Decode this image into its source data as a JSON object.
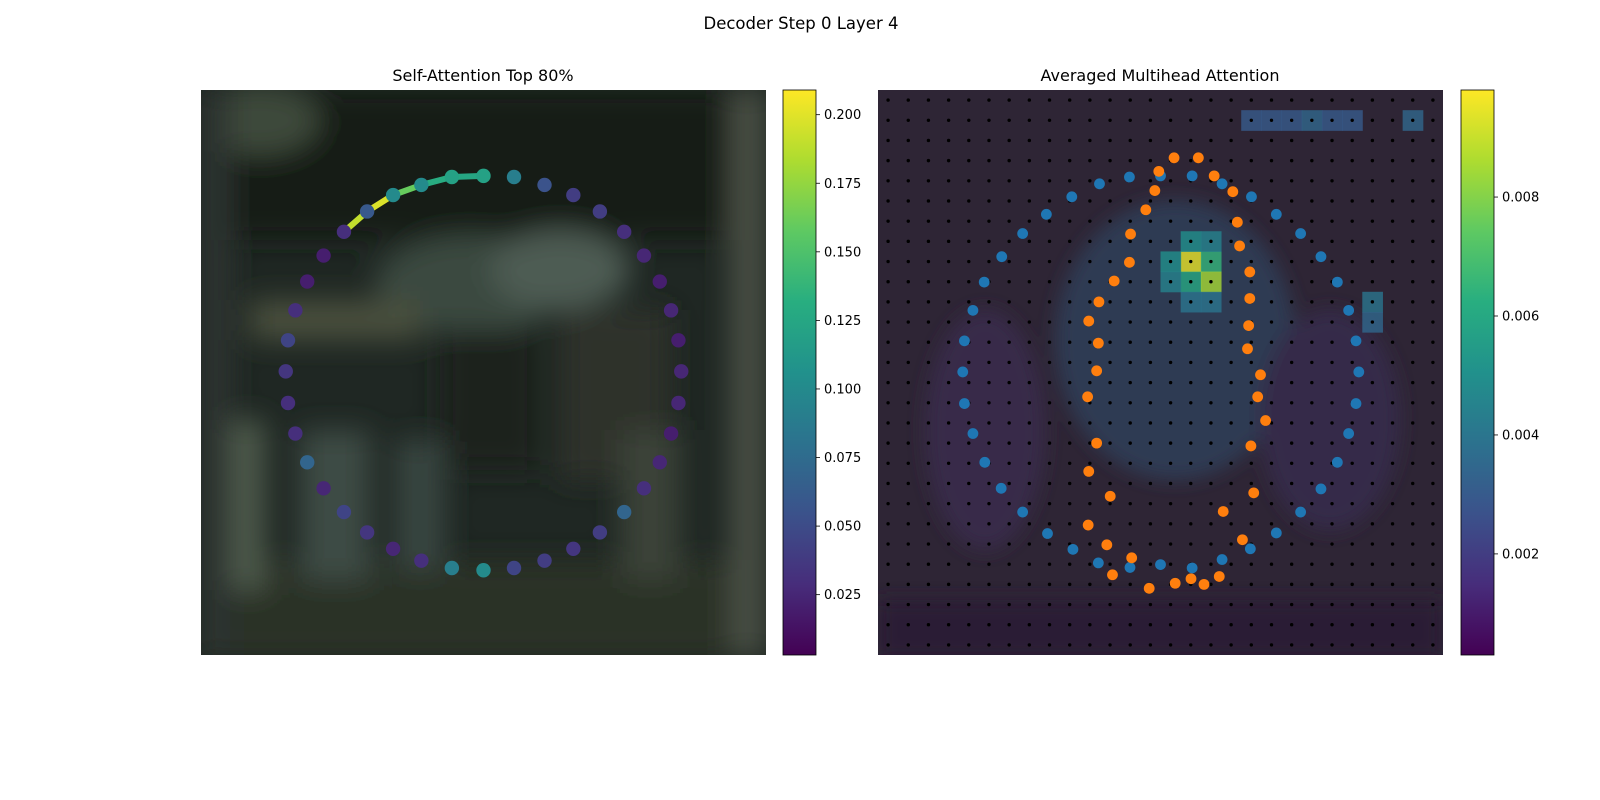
{
  "figure": {
    "suptitle": "Decoder Step 0 Layer 4"
  },
  "chart_data": [
    {
      "type": "scatter",
      "title": "Self-Attention Top 80%",
      "xlabel": "",
      "ylabel": "",
      "background": "blurred dark photograph",
      "grid": false,
      "colormap": "viridis",
      "colorbar": {
        "range": [
          0.003,
          0.209
        ],
        "ticks": [
          "0.025",
          "0.050",
          "0.075",
          "0.100",
          "0.125",
          "0.150",
          "0.175",
          "0.200"
        ]
      },
      "connections": [
        {
          "from": 0,
          "to": 1,
          "weight": 0.125
        },
        {
          "from": 1,
          "to": 2,
          "weight": 0.13
        },
        {
          "from": 2,
          "to": 3,
          "weight": 0.16
        },
        {
          "from": 3,
          "to": 4,
          "weight": 0.198
        },
        {
          "from": 4,
          "to": 5,
          "weight": 0.19
        }
      ],
      "points": [
        {
          "x": 0.5,
          "y": 0.848,
          "value": 0.12
        },
        {
          "x": 0.444,
          "y": 0.846,
          "value": 0.12
        },
        {
          "x": 0.39,
          "y": 0.832,
          "value": 0.1
        },
        {
          "x": 0.34,
          "y": 0.814,
          "value": 0.1
        },
        {
          "x": 0.294,
          "y": 0.785,
          "value": 0.06
        },
        {
          "x": 0.253,
          "y": 0.749,
          "value": 0.03
        },
        {
          "x": 0.217,
          "y": 0.707,
          "value": 0.02
        },
        {
          "x": 0.188,
          "y": 0.661,
          "value": 0.02
        },
        {
          "x": 0.167,
          "y": 0.61,
          "value": 0.03
        },
        {
          "x": 0.154,
          "y": 0.557,
          "value": 0.045
        },
        {
          "x": 0.15,
          "y": 0.502,
          "value": 0.035
        },
        {
          "x": 0.154,
          "y": 0.446,
          "value": 0.03
        },
        {
          "x": 0.167,
          "y": 0.392,
          "value": 0.03
        },
        {
          "x": 0.188,
          "y": 0.341,
          "value": 0.07
        },
        {
          "x": 0.217,
          "y": 0.295,
          "value": 0.025
        },
        {
          "x": 0.253,
          "y": 0.253,
          "value": 0.045
        },
        {
          "x": 0.294,
          "y": 0.217,
          "value": 0.035
        },
        {
          "x": 0.34,
          "y": 0.188,
          "value": 0.025
        },
        {
          "x": 0.39,
          "y": 0.167,
          "value": 0.03
        },
        {
          "x": 0.444,
          "y": 0.154,
          "value": 0.09
        },
        {
          "x": 0.5,
          "y": 0.15,
          "value": 0.1
        },
        {
          "x": 0.554,
          "y": 0.154,
          "value": 0.045
        },
        {
          "x": 0.608,
          "y": 0.167,
          "value": 0.04
        },
        {
          "x": 0.659,
          "y": 0.188,
          "value": 0.035
        },
        {
          "x": 0.706,
          "y": 0.217,
          "value": 0.04
        },
        {
          "x": 0.749,
          "y": 0.253,
          "value": 0.07
        },
        {
          "x": 0.784,
          "y": 0.295,
          "value": 0.03
        },
        {
          "x": 0.812,
          "y": 0.341,
          "value": 0.025
        },
        {
          "x": 0.832,
          "y": 0.392,
          "value": 0.02
        },
        {
          "x": 0.845,
          "y": 0.446,
          "value": 0.025
        },
        {
          "x": 0.85,
          "y": 0.502,
          "value": 0.025
        },
        {
          "x": 0.845,
          "y": 0.557,
          "value": 0.02
        },
        {
          "x": 0.832,
          "y": 0.61,
          "value": 0.025
        },
        {
          "x": 0.812,
          "y": 0.661,
          "value": 0.02
        },
        {
          "x": 0.784,
          "y": 0.707,
          "value": 0.025
        },
        {
          "x": 0.749,
          "y": 0.749,
          "value": 0.03
        },
        {
          "x": 0.706,
          "y": 0.785,
          "value": 0.04
        },
        {
          "x": 0.659,
          "y": 0.814,
          "value": 0.04
        },
        {
          "x": 0.608,
          "y": 0.832,
          "value": 0.055
        },
        {
          "x": 0.554,
          "y": 0.846,
          "value": 0.09
        }
      ]
    },
    {
      "type": "heatmap",
      "title": "Averaged Multihead Attention",
      "xlabel": "",
      "ylabel": "",
      "grid": false,
      "colormap": "viridis",
      "colorbar": {
        "range": [
          0.0003,
          0.0098
        ],
        "ticks": [
          "0.002",
          "0.004",
          "0.006",
          "0.008"
        ]
      },
      "grid_size": 28,
      "heat_cells": [
        {
          "col": 15,
          "row": 8,
          "value": 0.0095
        },
        {
          "col": 16,
          "row": 8,
          "value": 0.0065
        },
        {
          "col": 15,
          "row": 9,
          "value": 0.006
        },
        {
          "col": 16,
          "row": 9,
          "value": 0.0085
        },
        {
          "col": 14,
          "row": 8,
          "value": 0.005
        },
        {
          "col": 14,
          "row": 9,
          "value": 0.0045
        },
        {
          "col": 15,
          "row": 7,
          "value": 0.005
        },
        {
          "col": 16,
          "row": 7,
          "value": 0.0045
        },
        {
          "col": 15,
          "row": 10,
          "value": 0.004
        },
        {
          "col": 16,
          "row": 10,
          "value": 0.004
        },
        {
          "col": 24,
          "row": 10,
          "value": 0.004
        },
        {
          "col": 24,
          "row": 11,
          "value": 0.0035
        },
        {
          "col": 18,
          "row": 1,
          "value": 0.003
        },
        {
          "col": 19,
          "row": 1,
          "value": 0.003
        },
        {
          "col": 20,
          "row": 1,
          "value": 0.003
        },
        {
          "col": 21,
          "row": 1,
          "value": 0.0035
        },
        {
          "col": 22,
          "row": 1,
          "value": 0.003
        },
        {
          "col": 23,
          "row": 1,
          "value": 0.003
        },
        {
          "col": 26,
          "row": 1,
          "value": 0.0035
        }
      ],
      "series": [
        {
          "name": "",
          "color": "#1f77b4",
          "points": [
            {
              "x": 0.556,
              "y": 0.848
            },
            {
              "x": 0.5,
              "y": 0.848
            },
            {
              "x": 0.445,
              "y": 0.846
            },
            {
              "x": 0.392,
              "y": 0.834
            },
            {
              "x": 0.343,
              "y": 0.811
            },
            {
              "x": 0.298,
              "y": 0.78
            },
            {
              "x": 0.256,
              "y": 0.746
            },
            {
              "x": 0.219,
              "y": 0.705
            },
            {
              "x": 0.188,
              "y": 0.66
            },
            {
              "x": 0.168,
              "y": 0.61
            },
            {
              "x": 0.153,
              "y": 0.556
            },
            {
              "x": 0.15,
              "y": 0.501
            },
            {
              "x": 0.153,
              "y": 0.445
            },
            {
              "x": 0.168,
              "y": 0.392
            },
            {
              "x": 0.189,
              "y": 0.341
            },
            {
              "x": 0.218,
              "y": 0.295
            },
            {
              "x": 0.256,
              "y": 0.253
            },
            {
              "x": 0.3,
              "y": 0.215
            },
            {
              "x": 0.345,
              "y": 0.187
            },
            {
              "x": 0.39,
              "y": 0.163
            },
            {
              "x": 0.446,
              "y": 0.155
            },
            {
              "x": 0.5,
              "y": 0.16
            },
            {
              "x": 0.556,
              "y": 0.154
            },
            {
              "x": 0.609,
              "y": 0.169
            },
            {
              "x": 0.659,
              "y": 0.188
            },
            {
              "x": 0.705,
              "y": 0.216
            },
            {
              "x": 0.748,
              "y": 0.253
            },
            {
              "x": 0.784,
              "y": 0.294
            },
            {
              "x": 0.813,
              "y": 0.341
            },
            {
              "x": 0.833,
              "y": 0.392
            },
            {
              "x": 0.846,
              "y": 0.445
            },
            {
              "x": 0.851,
              "y": 0.501
            },
            {
              "x": 0.846,
              "y": 0.556
            },
            {
              "x": 0.833,
              "y": 0.61
            },
            {
              "x": 0.813,
              "y": 0.66
            },
            {
              "x": 0.784,
              "y": 0.705
            },
            {
              "x": 0.748,
              "y": 0.746
            },
            {
              "x": 0.705,
              "y": 0.78
            },
            {
              "x": 0.661,
              "y": 0.811
            },
            {
              "x": 0.609,
              "y": 0.834
            }
          ]
        },
        {
          "name": "",
          "color": "#ff7f0e",
          "points": [
            {
              "x": 0.524,
              "y": 0.88
            },
            {
              "x": 0.567,
              "y": 0.88
            },
            {
              "x": 0.497,
              "y": 0.856
            },
            {
              "x": 0.595,
              "y": 0.848
            },
            {
              "x": 0.49,
              "y": 0.822
            },
            {
              "x": 0.628,
              "y": 0.82
            },
            {
              "x": 0.474,
              "y": 0.788
            },
            {
              "x": 0.636,
              "y": 0.766
            },
            {
              "x": 0.447,
              "y": 0.745
            },
            {
              "x": 0.64,
              "y": 0.724
            },
            {
              "x": 0.445,
              "y": 0.695
            },
            {
              "x": 0.658,
              "y": 0.678
            },
            {
              "x": 0.418,
              "y": 0.662
            },
            {
              "x": 0.658,
              "y": 0.631
            },
            {
              "x": 0.391,
              "y": 0.625
            },
            {
              "x": 0.656,
              "y": 0.583
            },
            {
              "x": 0.373,
              "y": 0.591
            },
            {
              "x": 0.654,
              "y": 0.542
            },
            {
              "x": 0.39,
              "y": 0.552
            },
            {
              "x": 0.677,
              "y": 0.496
            },
            {
              "x": 0.387,
              "y": 0.503
            },
            {
              "x": 0.672,
              "y": 0.457
            },
            {
              "x": 0.371,
              "y": 0.457
            },
            {
              "x": 0.686,
              "y": 0.415
            },
            {
              "x": 0.387,
              "y": 0.375
            },
            {
              "x": 0.66,
              "y": 0.37
            },
            {
              "x": 0.373,
              "y": 0.325
            },
            {
              "x": 0.665,
              "y": 0.287
            },
            {
              "x": 0.411,
              "y": 0.281
            },
            {
              "x": 0.611,
              "y": 0.254
            },
            {
              "x": 0.372,
              "y": 0.23
            },
            {
              "x": 0.645,
              "y": 0.204
            },
            {
              "x": 0.405,
              "y": 0.195
            },
            {
              "x": 0.415,
              "y": 0.142
            },
            {
              "x": 0.604,
              "y": 0.139
            },
            {
              "x": 0.48,
              "y": 0.118
            },
            {
              "x": 0.577,
              "y": 0.125
            },
            {
              "x": 0.554,
              "y": 0.135
            },
            {
              "x": 0.449,
              "y": 0.172
            },
            {
              "x": 0.526,
              "y": 0.127
            }
          ]
        }
      ]
    }
  ]
}
